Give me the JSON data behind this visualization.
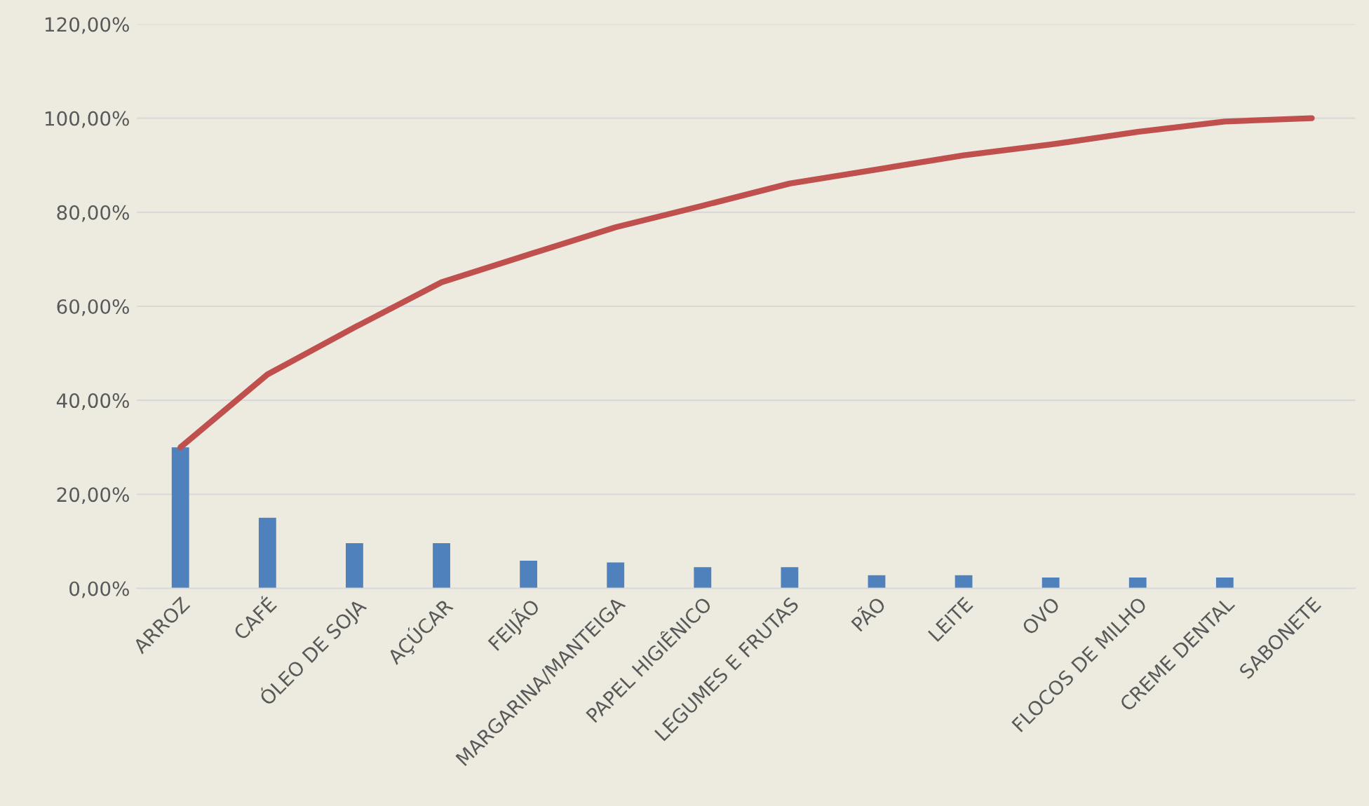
{
  "chart_data": {
    "type": "bar",
    "categories": [
      "ARROZ",
      "CAFÉ",
      "ÓLEO DE SOJA",
      "AÇÚCAR",
      "FEIJÃO",
      "MARGARINA/MANTEIGA",
      "PAPEL HIGIÊNICO",
      "LEGUMES E FRUTAS",
      "PÃO",
      "LEITE",
      "OVO",
      "FLOCOS DE MILHO",
      "CREME DENTAL",
      "SABONETE"
    ],
    "series": [
      {
        "color": "#4f81bd",
        "values": [
          30,
          15,
          9.6,
          9.6,
          5.9,
          5.5,
          4.5,
          4.5,
          2.8,
          2.8,
          2.3,
          2.3,
          2.3,
          0
        ]
      },
      {
        "type": "line",
        "color": "#c0504d",
        "values": [
          30,
          45.5,
          55.5,
          65.1,
          71,
          76.8,
          81.4,
          86.1,
          89.1,
          92.1,
          94.4,
          97.1,
          99.3,
          100
        ]
      }
    ],
    "ylim": [
      0,
      120
    ],
    "yticks": [
      {
        "value": 0,
        "label": "0,00%"
      },
      {
        "value": 20,
        "label": "20,00%"
      },
      {
        "value": 40,
        "label": "40,00%"
      },
      {
        "value": 60,
        "label": "60,00%"
      },
      {
        "value": 80,
        "label": "80,00%"
      },
      {
        "value": 100,
        "label": "100,00%"
      },
      {
        "value": 120,
        "label": "120,00%"
      }
    ],
    "grid": "y",
    "legend": false,
    "marker": "none",
    "line_style": "solid"
  }
}
